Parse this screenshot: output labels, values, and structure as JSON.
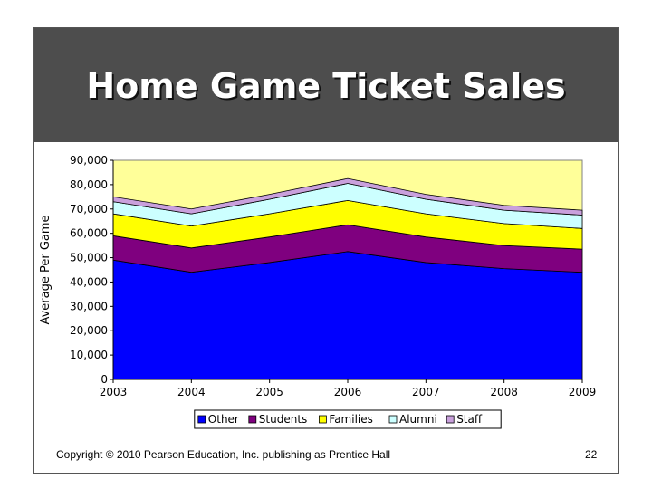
{
  "slide": {
    "title": "Home Game Ticket Sales",
    "copyright": "Copyright © 2010 Pearson Education, Inc. publishing as Prentice Hall",
    "page_number": "22"
  },
  "chart_data": {
    "type": "area",
    "stacked": true,
    "title": "Home Game Ticket Sales",
    "xlabel": "",
    "ylabel": "Average Per Game",
    "x": [
      "2003",
      "2004",
      "2005",
      "2006",
      "2007",
      "2008",
      "2009"
    ],
    "ylim": [
      0,
      90000
    ],
    "yticks": [
      0,
      10000,
      20000,
      30000,
      40000,
      50000,
      60000,
      70000,
      80000,
      90000
    ],
    "ytick_labels": [
      "0",
      "10,000",
      "20,000",
      "30,000",
      "40,000",
      "50,000",
      "60,000",
      "70,000",
      "80,000",
      "90,000"
    ],
    "legend_position": "bottom",
    "grid": false,
    "series": [
      {
        "name": "Other",
        "color": "#0000ff",
        "values": [
          49000,
          44000,
          48000,
          52500,
          48000,
          45500,
          44000
        ]
      },
      {
        "name": "Students",
        "color": "#7f007f",
        "values": [
          10000,
          10000,
          10500,
          11000,
          10500,
          9500,
          9500
        ]
      },
      {
        "name": "Families",
        "color": "#ffff00",
        "values": [
          9000,
          9000,
          9500,
          10000,
          9500,
          9000,
          8500
        ]
      },
      {
        "name": "Alumni",
        "color": "#ccffff",
        "values": [
          5000,
          5000,
          6000,
          7000,
          6000,
          5500,
          5500
        ]
      },
      {
        "name": "Staff",
        "color": "#c9a0dc",
        "values": [
          2000,
          2000,
          2000,
          2000,
          2000,
          2000,
          2000
        ]
      }
    ],
    "plot_background": "#ffff99"
  }
}
